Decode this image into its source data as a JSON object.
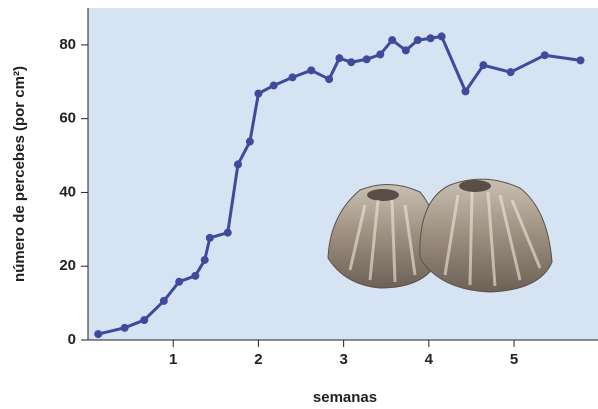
{
  "chart_data": {
    "type": "line",
    "x_label": "semanas",
    "y_label": "número de percebes (por cm²)",
    "xlim": [
      0,
      5.95
    ],
    "xticks": [
      1,
      2,
      3,
      4,
      5
    ],
    "ylim": [
      0,
      90
    ],
    "yticks": [
      0,
      20,
      40,
      60,
      80
    ],
    "background": "#d6e3f3",
    "series": [
      {
        "color": "#3f4a9c",
        "x": [
          0.12,
          0.43,
          0.66,
          0.89,
          1.07,
          1.26,
          1.37,
          1.43,
          1.64,
          1.76,
          1.9,
          2.0,
          2.18,
          2.4,
          2.62,
          2.83,
          2.95,
          3.09,
          3.27,
          3.43,
          3.57,
          3.73,
          3.87,
          4.02,
          4.15,
          4.43,
          4.64,
          4.96,
          5.36,
          5.78
        ],
        "values": [
          1.6,
          3.3,
          5.4,
          10.6,
          15.8,
          17.4,
          21.7,
          27.7,
          29.1,
          47.6,
          53.8,
          66.8,
          69,
          71.2,
          73.1,
          70.7,
          76.4,
          75.3,
          76.1,
          77.4,
          81.3,
          78.5,
          81.3,
          81.8,
          82.3,
          67.4,
          74.5,
          72.6,
          77.2,
          75.8
        ]
      }
    ]
  }
}
